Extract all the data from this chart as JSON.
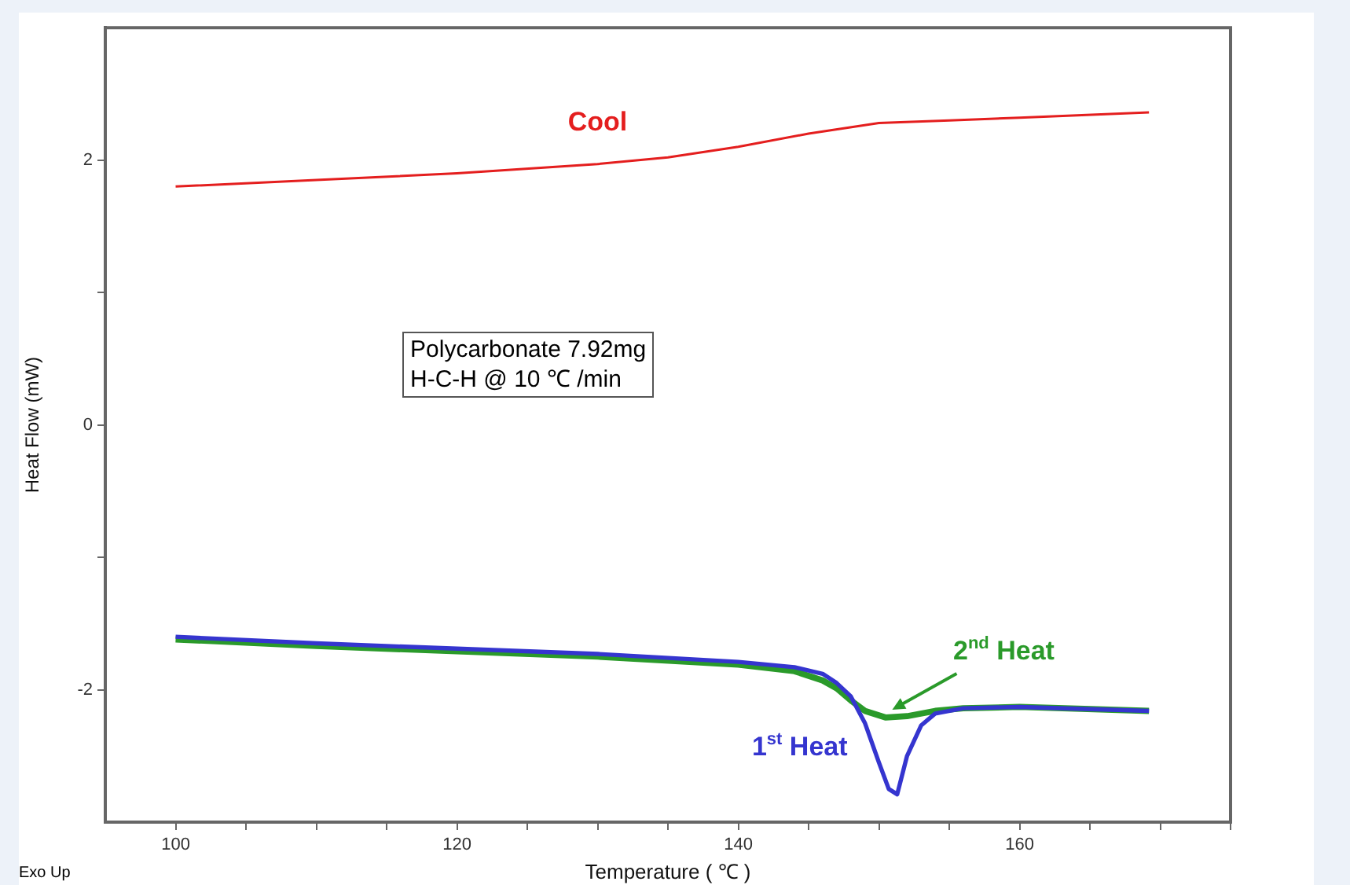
{
  "chart_data": {
    "type": "line",
    "xlabel": "Temperature ( ℃ )",
    "ylabel": "Heat Flow (mW)",
    "xlim": [
      95,
      175
    ],
    "ylim": [
      -3,
      3
    ],
    "xticks": [
      100,
      {
        "value": 105,
        "label": null
      },
      {
        "value": 110,
        "label": null
      },
      {
        "value": 115,
        "label": null
      },
      120,
      {
        "value": 125,
        "label": null
      },
      {
        "value": 130,
        "label": null
      },
      {
        "value": 135,
        "label": null
      },
      140,
      {
        "value": 145,
        "label": null
      },
      {
        "value": 150,
        "label": null
      },
      {
        "value": 155,
        "label": null
      },
      160,
      {
        "value": 165,
        "label": null
      },
      {
        "value": 170,
        "label": null
      },
      {
        "value": 175,
        "label": null
      }
    ],
    "yticks": [
      -2,
      {
        "value": -1,
        "label": null
      },
      0,
      {
        "value": 1,
        "label": null
      },
      2
    ],
    "marker": "none",
    "series": [
      {
        "name": "Cool",
        "color": "#e41e1e",
        "x": [
          100,
          110,
          120,
          130,
          135,
          140,
          145,
          150,
          155,
          160,
          169.2
        ],
        "values": [
          1.8,
          1.85,
          1.9,
          1.97,
          2.02,
          2.1,
          2.2,
          2.28,
          2.3,
          2.32,
          2.36
        ]
      },
      {
        "name": "1$^{st}$ Heat",
        "color": "#3535cf",
        "x": [
          100,
          110,
          120,
          130,
          140,
          144,
          146,
          147,
          148,
          149,
          150,
          150.7,
          151.3,
          152,
          153,
          154,
          156,
          160,
          169.2
        ],
        "values": [
          -1.6,
          -1.65,
          -1.69,
          -1.73,
          -1.79,
          -1.83,
          -1.88,
          -1.95,
          -2.05,
          -2.25,
          -2.55,
          -2.75,
          -2.79,
          -2.5,
          -2.27,
          -2.18,
          -2.14,
          -2.13,
          -2.16
        ]
      },
      {
        "name": "2$^{nd}$ Heat",
        "color": "#2a9a2a",
        "x": [
          100,
          110,
          120,
          130,
          140,
          144,
          146,
          147,
          148,
          149,
          150.5,
          152,
          154,
          156,
          160,
          169.2
        ],
        "values": [
          -1.62,
          -1.67,
          -1.71,
          -1.75,
          -1.81,
          -1.86,
          -1.93,
          -1.99,
          -2.08,
          -2.16,
          -2.21,
          -2.2,
          -2.16,
          -2.14,
          -2.13,
          -2.16
        ]
      }
    ],
    "annotations": [
      "Polycarbonate 7.92mg\nH-C-H @ 10 ℃ /min",
      "Exo Up"
    ]
  }
}
